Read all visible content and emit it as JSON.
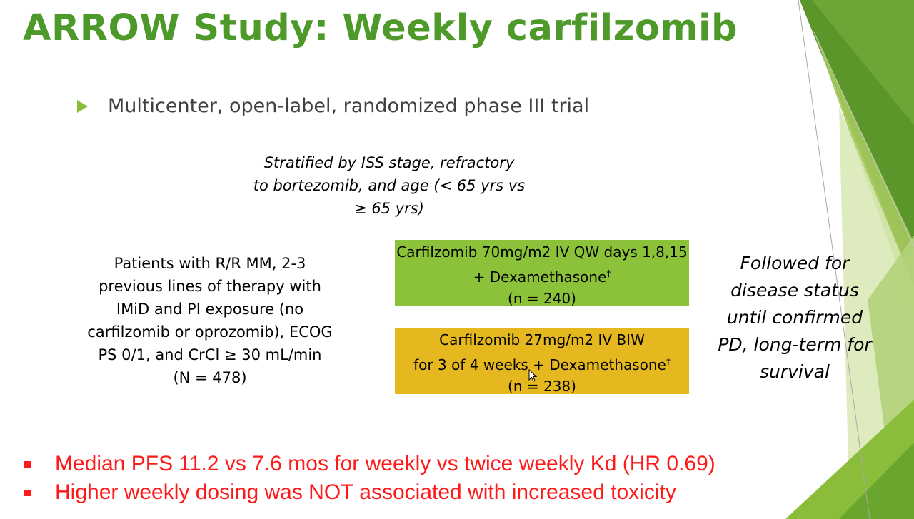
{
  "slide": {
    "title": "ARROW Study: Weekly carfilzomib",
    "bullet": "Multicenter, open-label, randomized phase III trial",
    "stratification": [
      "Stratified by ISS stage, refractory",
      "to bortezomib, and age (< 65 yrs vs",
      "≥ 65 yrs)"
    ],
    "patients": [
      "Patients with R/R MM, 2-3",
      "previous lines of therapy with",
      "IMiD and PI exposure (no",
      "carfilzomib or oprozomib), ECOG",
      "PS 0/1, and CrCl ≥ 30 mL/min",
      "(N = 478)"
    ],
    "arm_weekly": {
      "line1": "Carfilzomib 70mg/m2 IV QW days 1,8,15",
      "line2": "+ Dexamethasone",
      "dagger": "†",
      "line3": "(n = 240)",
      "color": "#8cc23a"
    },
    "arm_twice_weekly": {
      "line1": "Carfilzomib 27mg/m2 IV BIW",
      "line2": "for 3 of 4 weeks + Dexamethasone",
      "dagger": "†",
      "line3": "(n = 238)",
      "color": "#e6b820"
    },
    "followup": [
      "Followed for",
      "disease status",
      "until confirmed",
      "PD, long-term for",
      "survival"
    ],
    "results": [
      "Median PFS 11.2 vs 7.6 mos for weekly vs twice weekly Kd (HR 0.69)",
      "Higher weekly dosing was NOT associated with increased toxicity"
    ],
    "colors": {
      "title": "#4d9a2a",
      "results": "#ff1a1a"
    }
  }
}
